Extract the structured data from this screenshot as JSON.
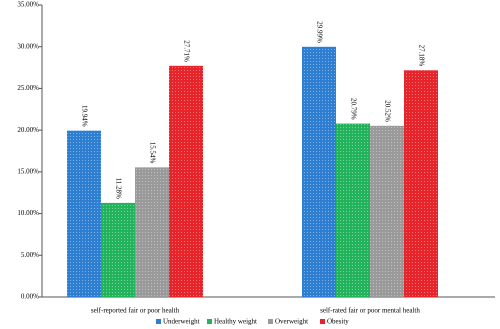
{
  "chart_data": {
    "type": "bar",
    "categories": [
      "self-reported fair or poor health",
      "self-rated fair or poor mental health"
    ],
    "series": [
      {
        "name": "Underweight",
        "color": "#2e7fd1",
        "values": [
          19.94,
          29.99
        ],
        "value_labels": [
          "19.94%",
          "29.99%"
        ]
      },
      {
        "name": "Healthy weight",
        "color": "#22b35c",
        "values": [
          11.28,
          20.79
        ],
        "value_labels": [
          "11.28%",
          "20.79%"
        ]
      },
      {
        "name": "Overweight",
        "color": "#9a9a9a",
        "values": [
          15.54,
          20.52
        ],
        "value_labels": [
          "15.54%",
          "20.52%"
        ]
      },
      {
        "name": "Obesity",
        "color": "#e8242b",
        "values": [
          27.71,
          27.18
        ],
        "value_labels": [
          "27.71%",
          "27.18%"
        ]
      }
    ],
    "ylim": [
      0,
      35
    ],
    "yticks": [
      {
        "value": 0,
        "label": "0.00%"
      },
      {
        "value": 5,
        "label": "5.00%"
      },
      {
        "value": 10,
        "label": "10.00%"
      },
      {
        "value": 15,
        "label": "15.00%"
      },
      {
        "value": 20,
        "label": "20.00%"
      },
      {
        "value": 25,
        "label": "25.00%"
      },
      {
        "value": 30,
        "label": "30.00%"
      },
      {
        "value": 35,
        "label": "35.00%"
      }
    ],
    "legend": "bottom"
  }
}
